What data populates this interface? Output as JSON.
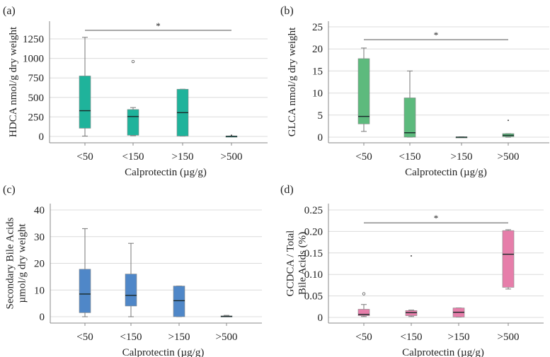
{
  "chart_data": [
    {
      "panel_label": "(a)",
      "type": "box",
      "ylabel": [
        "HDCA nmol/g dry weight"
      ],
      "xlabel": "Calprotectin (µg/g)",
      "categories": [
        "<50",
        "<150",
        ">150",
        ">500"
      ],
      "yticks": [
        "0",
        "250",
        "500",
        "750",
        "1000",
        "1250"
      ],
      "ylim": [
        0,
        1250
      ],
      "color": "#1fb39b",
      "boxes": [
        {
          "min": 5,
          "q1": 105,
          "median": 330,
          "q3": 775,
          "max": 1270,
          "outliers": []
        },
        {
          "min": 10,
          "q1": 15,
          "median": 255,
          "q3": 345,
          "max": 370,
          "outliers": [
            {
              "value": 960,
              "kind": "circle"
            }
          ]
        },
        {
          "min": 5,
          "q1": 5,
          "median": 305,
          "q3": 605,
          "max": 605,
          "outliers": []
        },
        {
          "min": 0,
          "q1": 0,
          "median": 2,
          "q3": 4,
          "max": 5,
          "outliers": [
            {
              "value": 15,
              "kind": "star"
            }
          ]
        }
      ],
      "significance": {
        "from": 0,
        "to": 3,
        "value": 1360,
        "label": "*"
      }
    },
    {
      "panel_label": "(b)",
      "type": "box",
      "ylabel": [
        "GLCA nmol/g dry weight"
      ],
      "xlabel": "Calprotectin (µg/g)",
      "categories": [
        "<50",
        "<150",
        ">150",
        ">500"
      ],
      "yticks": [
        "0",
        "5",
        "10",
        "15",
        "20",
        "25"
      ],
      "ylim": [
        0,
        25
      ],
      "color": "#5dba7d",
      "boxes": [
        {
          "min": 1.3,
          "q1": 3,
          "median": 4.7,
          "q3": 17.8,
          "max": 20.2,
          "outliers": []
        },
        {
          "min": 0,
          "q1": 0,
          "median": 1,
          "q3": 8.9,
          "max": 15,
          "outliers": []
        },
        {
          "min": 0,
          "q1": 0,
          "median": 0,
          "q3": 0.05,
          "max": 0.05,
          "outliers": []
        },
        {
          "min": 0,
          "q1": 0.1,
          "median": 0.4,
          "q3": 0.8,
          "max": 0.8,
          "outliers": [
            {
              "value": 3.8,
              "kind": "star"
            }
          ]
        }
      ],
      "significance": {
        "from": 0,
        "to": 3,
        "value": 22.1,
        "label": "*"
      }
    },
    {
      "panel_label": "(c)",
      "type": "box",
      "ylabel": [
        "Secondary Bile Acids",
        "µmol/g dry weight"
      ],
      "xlabel": "Calprotectin (µg/g)",
      "categories": [
        "<50",
        "<150",
        ">150",
        ">500"
      ],
      "yticks": [
        "0",
        "10",
        "20",
        "30",
        "40"
      ],
      "ylim": [
        0,
        40
      ],
      "color": "#4f87c8",
      "boxes": [
        {
          "min": 0,
          "q1": 1.5,
          "median": 8.5,
          "q3": 17.8,
          "max": 33,
          "outliers": []
        },
        {
          "min": 0,
          "q1": 4,
          "median": 8,
          "q3": 16,
          "max": 27.5,
          "outliers": []
        },
        {
          "min": 0,
          "q1": 0,
          "median": 6,
          "q3": 11.5,
          "max": 11.5,
          "outliers": []
        },
        {
          "min": 0,
          "q1": 0,
          "median": 0.1,
          "q3": 0.3,
          "max": 0.5,
          "outliers": []
        }
      ],
      "significance": null
    },
    {
      "panel_label": "(d)",
      "type": "box",
      "ylabel": [
        "GCDCA / Total",
        "Bile Acids (%)"
      ],
      "xlabel": "Calprotectin (µg/g)",
      "categories": [
        "<50",
        "<150",
        ">150",
        ">500"
      ],
      "yticks": [
        "0",
        "0.05",
        "0.10",
        "0.15",
        "0.20",
        "0.25"
      ],
      "ylim": [
        0,
        0.25
      ],
      "color": "#e67eaa",
      "boxes": [
        {
          "min": 0.002,
          "q1": 0.004,
          "median": 0.007,
          "q3": 0.019,
          "max": 0.03,
          "outliers": [
            {
              "value": 0.055,
              "kind": "circle"
            }
          ]
        },
        {
          "min": 0.002,
          "q1": 0.004,
          "median": 0.011,
          "q3": 0.016,
          "max": 0.017,
          "outliers": [
            {
              "value": 0.143,
              "kind": "star"
            }
          ]
        },
        {
          "min": 0.001,
          "q1": 0.001,
          "median": 0.012,
          "q3": 0.022,
          "max": 0.022,
          "outliers": []
        },
        {
          "min": 0.066,
          "q1": 0.07,
          "median": 0.147,
          "q3": 0.202,
          "max": 0.204,
          "outliers": []
        }
      ],
      "significance": {
        "from": 0,
        "to": 3,
        "value": 0.22,
        "label": "*"
      }
    }
  ]
}
